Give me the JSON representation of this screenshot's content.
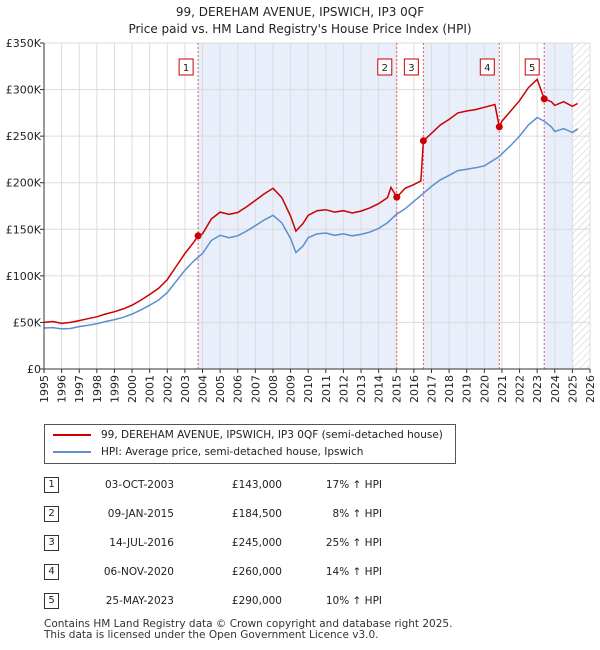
{
  "title_line1": "99, DEREHAM AVENUE, IPSWICH, IP3 0QF",
  "title_line2": "Price paid vs. HM Land Registry's House Price Index (HPI)",
  "chart_data": {
    "type": "line",
    "title": "99, DEREHAM AVENUE, IPSWICH, IP3 0QF — Price paid vs. HM Land Registry's House Price Index (HPI)",
    "xlim": [
      1995,
      2026
    ],
    "ylim": [
      0,
      350000
    ],
    "y_ticks": [
      0,
      50000,
      100000,
      150000,
      200000,
      250000,
      300000,
      350000
    ],
    "y_tick_labels": [
      "£0",
      "£50K",
      "£100K",
      "£150K",
      "£200K",
      "£250K",
      "£300K",
      "£350K"
    ],
    "x_ticks": [
      1995,
      1996,
      1997,
      1998,
      1999,
      2000,
      2001,
      2002,
      2003,
      2004,
      2005,
      2006,
      2007,
      2008,
      2009,
      2010,
      2011,
      2012,
      2013,
      2014,
      2015,
      2016,
      2017,
      2018,
      2019,
      2020,
      2021,
      2022,
      2023,
      2024,
      2025,
      2026
    ],
    "grid": true,
    "colors": {
      "price": "#cc0000",
      "hpi": "#5b8fd0",
      "shade": "#e8eefa",
      "marker_line": "#e06060"
    },
    "shaded_ranges": [
      [
        2003.75,
        2015.03
      ],
      [
        2016.54,
        2020.85
      ],
      [
        2023.4,
        2025.0
      ]
    ],
    "future_hatch_from": 2025.0,
    "hpi_series": {
      "name": "HPI: Average price, semi-detached house, Ipswich",
      "points": [
        [
          1995.0,
          44000
        ],
        [
          1995.5,
          44500
        ],
        [
          1996.0,
          43000
        ],
        [
          1996.5,
          43500
        ],
        [
          1997.0,
          45500
        ],
        [
          1997.5,
          47000
        ],
        [
          1998.0,
          48500
        ],
        [
          1998.5,
          51000
        ],
        [
          1999.0,
          53000
        ],
        [
          1999.5,
          55500
        ],
        [
          2000.0,
          59000
        ],
        [
          2000.5,
          63500
        ],
        [
          2001.0,
          68500
        ],
        [
          2001.5,
          74000
        ],
        [
          2002.0,
          82000
        ],
        [
          2002.5,
          94000
        ],
        [
          2003.0,
          106000
        ],
        [
          2003.5,
          116000
        ],
        [
          2004.0,
          124000
        ],
        [
          2004.5,
          138000
        ],
        [
          2005.0,
          143500
        ],
        [
          2005.5,
          141000
        ],
        [
          2006.0,
          143000
        ],
        [
          2006.5,
          148000
        ],
        [
          2007.0,
          154000
        ],
        [
          2007.5,
          160000
        ],
        [
          2008.0,
          165000
        ],
        [
          2008.5,
          157000
        ],
        [
          2009.0,
          140000
        ],
        [
          2009.3,
          125000
        ],
        [
          2009.7,
          132000
        ],
        [
          2010.0,
          141000
        ],
        [
          2010.5,
          145000
        ],
        [
          2011.0,
          146000
        ],
        [
          2011.5,
          143500
        ],
        [
          2012.0,
          145000
        ],
        [
          2012.5,
          143000
        ],
        [
          2013.0,
          144500
        ],
        [
          2013.5,
          147000
        ],
        [
          2014.0,
          151000
        ],
        [
          2014.5,
          157000
        ],
        [
          2015.0,
          166000
        ],
        [
          2015.5,
          172000
        ],
        [
          2016.0,
          180000
        ],
        [
          2016.5,
          188000
        ],
        [
          2017.0,
          196000
        ],
        [
          2017.5,
          203000
        ],
        [
          2018.0,
          208000
        ],
        [
          2018.5,
          213000
        ],
        [
          2019.0,
          214500
        ],
        [
          2019.5,
          216000
        ],
        [
          2020.0,
          218000
        ],
        [
          2020.5,
          224000
        ],
        [
          2020.85,
          228000
        ],
        [
          2021.0,
          231000
        ],
        [
          2021.5,
          240000
        ],
        [
          2022.0,
          250000
        ],
        [
          2022.5,
          262000
        ],
        [
          2023.0,
          270000
        ],
        [
          2023.4,
          266000
        ],
        [
          2023.8,
          260000
        ],
        [
          2024.0,
          255000
        ],
        [
          2024.5,
          258000
        ],
        [
          2025.0,
          254000
        ],
        [
          2025.3,
          258000
        ]
      ]
    },
    "price_series": {
      "name": "99, DEREHAM AVENUE, IPSWICH, IP3 0QF (semi-detached house)",
      "points": [
        [
          1995.0,
          50000
        ],
        [
          1995.5,
          51000
        ],
        [
          1996.0,
          49000
        ],
        [
          1996.5,
          50000
        ],
        [
          1997.0,
          52000
        ],
        [
          1997.5,
          54000
        ],
        [
          1998.0,
          56000
        ],
        [
          1998.5,
          59000
        ],
        [
          1999.0,
          61500
        ],
        [
          1999.5,
          64500
        ],
        [
          2000.0,
          68500
        ],
        [
          2000.5,
          74000
        ],
        [
          2001.0,
          80000
        ],
        [
          2001.5,
          86500
        ],
        [
          2002.0,
          96000
        ],
        [
          2002.5,
          110000
        ],
        [
          2003.0,
          124000
        ],
        [
          2003.5,
          136000
        ],
        [
          2003.75,
          143000
        ],
        [
          2004.0,
          145000
        ],
        [
          2004.5,
          161000
        ],
        [
          2005.0,
          168500
        ],
        [
          2005.5,
          166000
        ],
        [
          2006.0,
          168000
        ],
        [
          2006.5,
          174000
        ],
        [
          2007.0,
          181000
        ],
        [
          2007.5,
          188000
        ],
        [
          2008.0,
          194000
        ],
        [
          2008.5,
          184000
        ],
        [
          2009.0,
          164000
        ],
        [
          2009.3,
          148000
        ],
        [
          2009.7,
          156000
        ],
        [
          2010.0,
          165000
        ],
        [
          2010.5,
          170000
        ],
        [
          2011.0,
          171000
        ],
        [
          2011.5,
          168500
        ],
        [
          2012.0,
          170000
        ],
        [
          2012.5,
          167500
        ],
        [
          2013.0,
          169500
        ],
        [
          2013.5,
          173000
        ],
        [
          2014.0,
          177500
        ],
        [
          2014.5,
          184000
        ],
        [
          2014.7,
          195000
        ],
        [
          2015.03,
          184500
        ],
        [
          2015.5,
          194000
        ],
        [
          2016.0,
          198000
        ],
        [
          2016.4,
          202000
        ],
        [
          2016.54,
          245000
        ],
        [
          2017.0,
          253000
        ],
        [
          2017.5,
          262000
        ],
        [
          2018.0,
          268000
        ],
        [
          2018.5,
          275000
        ],
        [
          2019.0,
          277000
        ],
        [
          2019.5,
          278500
        ],
        [
          2020.0,
          281000
        ],
        [
          2020.6,
          284000
        ],
        [
          2020.85,
          260000
        ],
        [
          2021.0,
          266000
        ],
        [
          2021.5,
          277000
        ],
        [
          2022.0,
          288000
        ],
        [
          2022.5,
          302000
        ],
        [
          2023.0,
          311000
        ],
        [
          2023.4,
          290000
        ],
        [
          2023.8,
          287000
        ],
        [
          2024.0,
          283000
        ],
        [
          2024.5,
          287000
        ],
        [
          2025.0,
          282000
        ],
        [
          2025.3,
          285000
        ]
      ]
    },
    "sales": [
      {
        "id": "1",
        "date": "03-OCT-2003",
        "x": 2003.75,
        "price": 143000,
        "price_label": "£143,000",
        "hpi_diff": "17% ↑ HPI"
      },
      {
        "id": "2",
        "date": "09-JAN-2015",
        "x": 2015.03,
        "price": 184500,
        "price_label": "£184,500",
        "hpi_diff": "8% ↑ HPI"
      },
      {
        "id": "3",
        "date": "14-JUL-2016",
        "x": 2016.54,
        "price": 245000,
        "price_label": "£245,000",
        "hpi_diff": "25% ↑ HPI"
      },
      {
        "id": "4",
        "date": "06-NOV-2020",
        "x": 2020.85,
        "price": 260000,
        "price_label": "£260,000",
        "hpi_diff": "14% ↑ HPI"
      },
      {
        "id": "5",
        "date": "25-MAY-2023",
        "x": 2023.4,
        "price": 290000,
        "price_label": "£290,000",
        "hpi_diff": "10% ↑ HPI"
      }
    ]
  },
  "legend": {
    "price_label": "99, DEREHAM AVENUE, IPSWICH, IP3 0QF (semi-detached house)",
    "hpi_label": "HPI: Average price, semi-detached house, Ipswich"
  },
  "footer": {
    "line1": "Contains HM Land Registry data © Crown copyright and database right 2025.",
    "line2": "This data is licensed under the Open Government Licence v3.0."
  }
}
